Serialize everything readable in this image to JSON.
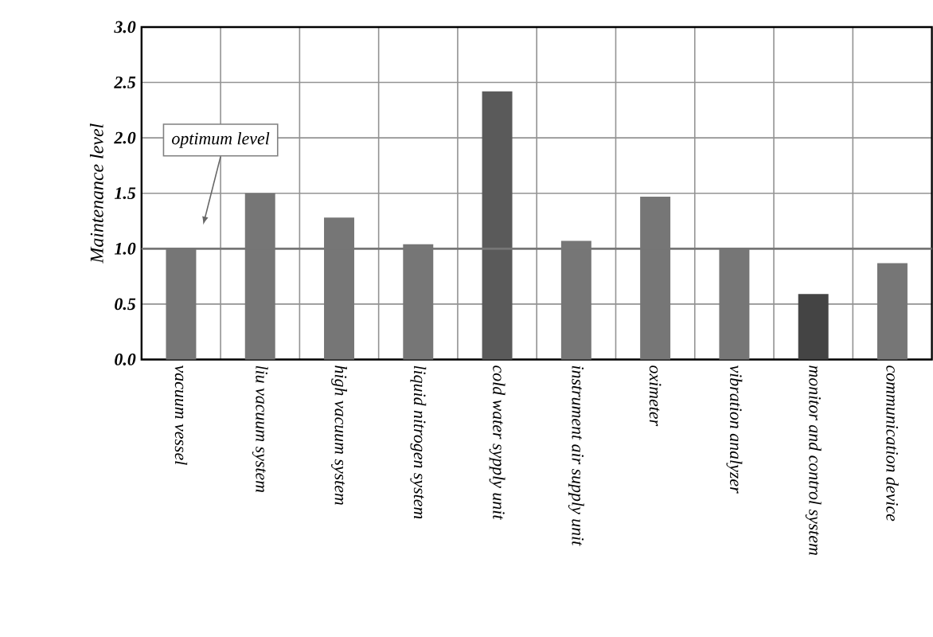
{
  "chart_data": {
    "type": "bar",
    "ylabel": "Maintenance level",
    "categories": [
      "vacuum vessel",
      "liu vacuum system",
      "high vacuum system",
      "liquid nitrogen system",
      "cold water sypply unit",
      "instrument air supply unit",
      "oximeter",
      "vibration analyzer",
      "monitor and control system",
      "communication device"
    ],
    "values": [
      1.0,
      1.5,
      1.28,
      1.04,
      2.42,
      1.07,
      1.47,
      1.0,
      0.59,
      0.87
    ],
    "colors": [
      "#767676",
      "#767676",
      "#767676",
      "#767676",
      "#5a5a5a",
      "#767676",
      "#767676",
      "#767676",
      "#444444",
      "#767676"
    ],
    "ylim": [
      0,
      3
    ],
    "yticks": [
      {
        "value": 0,
        "label": "0.0"
      },
      {
        "value": 0.5,
        "label": "0.5"
      },
      {
        "value": 1,
        "label": "1.0"
      },
      {
        "value": 1.5,
        "label": "1.5"
      },
      {
        "value": 2,
        "label": "2.0"
      },
      {
        "value": 2.5,
        "label": "2.5"
      },
      {
        "value": 3,
        "label": "3.0"
      }
    ],
    "grid": true,
    "annotations": [
      "optimum level"
    ],
    "ref_lines": [
      {
        "axis": "y",
        "value": 1,
        "color": "#767676"
      }
    ]
  }
}
